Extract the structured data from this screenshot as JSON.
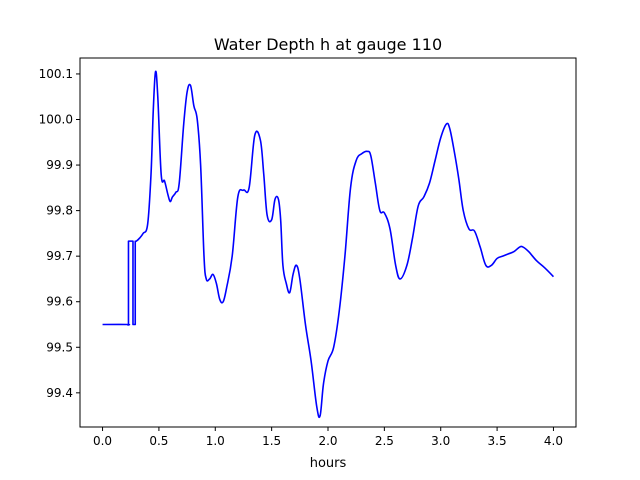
{
  "chart_data": {
    "type": "line",
    "title": "Water Depth h at gauge 110",
    "xlabel": "hours",
    "ylabel": "",
    "xlim": [
      -0.2,
      4.2
    ],
    "ylim": [
      99.325,
      100.135
    ],
    "grid": false,
    "legend": "none",
    "x_ticks": [
      0.0,
      0.5,
      1.0,
      1.5,
      2.0,
      2.5,
      3.0,
      3.5,
      4.0
    ],
    "x_tick_labels": [
      "0.0",
      "0.5",
      "1.0",
      "1.5",
      "2.0",
      "2.5",
      "3.0",
      "3.5",
      "4.0"
    ],
    "y_ticks": [
      99.4,
      99.5,
      99.6,
      99.7,
      99.8,
      99.9,
      100.0,
      100.1
    ],
    "y_tick_labels": [
      "99.4",
      "99.5",
      "99.6",
      "99.7",
      "99.8",
      "99.9",
      "100.0",
      "100.1"
    ],
    "series": [
      {
        "color": "#0000ff",
        "x": [
          0.0,
          0.22,
          0.225,
          0.23,
          0.23,
          0.27,
          0.27,
          0.275,
          0.29,
          0.29,
          0.3,
          0.33,
          0.36,
          0.4,
          0.43,
          0.45,
          0.47,
          0.49,
          0.52,
          0.55,
          0.58,
          0.6,
          0.62,
          0.65,
          0.68,
          0.72,
          0.75,
          0.78,
          0.81,
          0.84,
          0.87,
          0.9,
          0.92,
          0.95,
          0.98,
          1.01,
          1.04,
          1.07,
          1.1,
          1.15,
          1.2,
          1.25,
          1.3,
          1.35,
          1.4,
          1.43,
          1.46,
          1.5,
          1.53,
          1.56,
          1.58,
          1.6,
          1.63,
          1.66,
          1.69,
          1.72,
          1.75,
          1.8,
          1.85,
          1.9,
          1.93,
          1.96,
          2.0,
          2.05,
          2.1,
          2.15,
          2.2,
          2.25,
          2.3,
          2.35,
          2.38,
          2.42,
          2.46,
          2.5,
          2.55,
          2.6,
          2.64,
          2.7,
          2.75,
          2.8,
          2.85,
          2.9,
          2.95,
          3.0,
          3.05,
          3.08,
          3.12,
          3.16,
          3.2,
          3.25,
          3.3,
          3.35,
          3.4,
          3.45,
          3.5,
          3.55,
          3.6,
          3.65,
          3.7,
          3.73,
          3.78,
          3.85,
          3.92,
          4.0
        ],
        "y": [
          99.55,
          99.55,
          99.549,
          99.549,
          99.733,
          99.733,
          99.55,
          99.55,
          99.55,
          99.733,
          99.733,
          99.74,
          99.75,
          99.77,
          99.88,
          100.02,
          100.105,
          100.05,
          99.88,
          99.865,
          99.835,
          99.82,
          99.83,
          99.84,
          99.86,
          99.99,
          100.06,
          100.075,
          100.03,
          100.0,
          99.9,
          99.7,
          99.65,
          99.65,
          99.66,
          99.64,
          99.605,
          99.6,
          99.63,
          99.7,
          99.83,
          99.845,
          99.85,
          99.965,
          99.955,
          99.88,
          99.79,
          99.78,
          99.825,
          99.825,
          99.78,
          99.68,
          99.64,
          99.62,
          99.66,
          99.68,
          99.65,
          99.55,
          99.47,
          99.37,
          99.35,
          99.42,
          99.47,
          99.5,
          99.58,
          99.7,
          99.85,
          99.91,
          99.925,
          99.93,
          99.92,
          99.86,
          99.8,
          99.795,
          99.76,
          99.68,
          99.65,
          99.68,
          99.74,
          99.81,
          99.83,
          99.86,
          99.91,
          99.96,
          99.99,
          99.98,
          99.93,
          99.87,
          99.8,
          99.76,
          99.755,
          99.72,
          99.68,
          99.68,
          99.695,
          99.7,
          99.705,
          99.71,
          99.72,
          99.72,
          99.71,
          99.69,
          99.675,
          99.655
        ]
      }
    ]
  }
}
